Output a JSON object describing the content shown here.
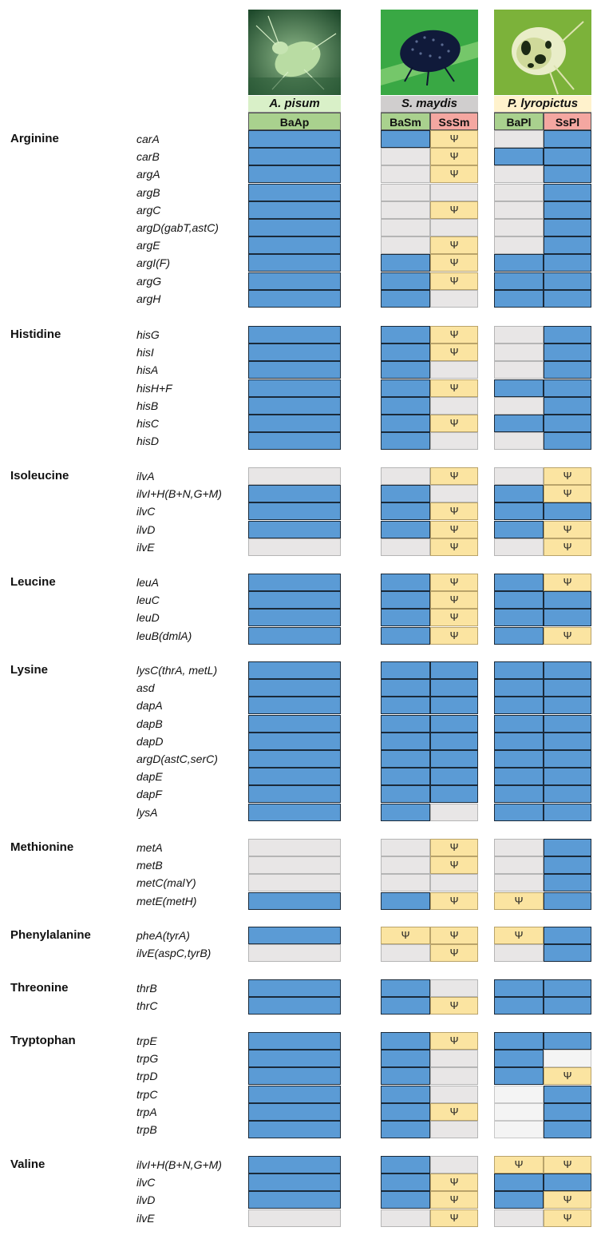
{
  "colors": {
    "present": "#5b9bd5",
    "absent": "#e8e6e6",
    "pseudogene": "#fbe4a1",
    "species_apisum_bg": "#d9f0c8",
    "species_smaydis_bg": "#d0cece",
    "species_plyropictus_bg": "#fff2cc",
    "buchnera_header_bg": "#a9d18e",
    "sulcia_header_bg": "#f4a7a1"
  },
  "legend_symbols": {
    "pseudogene": "Ψ"
  },
  "photos": [
    {
      "icon": "green-aphid-photo"
    },
    {
      "icon": "black-spiny-planthopper-photo"
    },
    {
      "icon": "psyllid-nymph-photo"
    }
  ],
  "species": [
    "A. pisum",
    "S. maydis",
    "P. lyropictus"
  ],
  "columns": [
    "BaAp",
    "BaSm",
    "SsSm",
    "BaPl",
    "SsPl"
  ],
  "groups": [
    {
      "name": "Arginine",
      "rows": [
        {
          "gene": "carA",
          "cells": [
            "P",
            "P",
            "Y",
            "A",
            "P"
          ]
        },
        {
          "gene": "carB",
          "cells": [
            "P",
            "A",
            "Y",
            "P",
            "P"
          ]
        },
        {
          "gene": "argA",
          "cells": [
            "P",
            "A",
            "Y",
            "A",
            "P"
          ]
        },
        {
          "gene": "argB",
          "cells": [
            "P",
            "A",
            "A",
            "A",
            "P"
          ]
        },
        {
          "gene": "argC",
          "cells": [
            "P",
            "A",
            "Y",
            "A",
            "P"
          ]
        },
        {
          "gene": "argD(gabT,astC)",
          "cells": [
            "P",
            "A",
            "A",
            "A",
            "P"
          ]
        },
        {
          "gene": "argE",
          "cells": [
            "P",
            "A",
            "Y",
            "A",
            "P"
          ]
        },
        {
          "gene": "argI(F)",
          "cells": [
            "P",
            "P",
            "Y",
            "P",
            "P"
          ]
        },
        {
          "gene": "argG",
          "cells": [
            "P",
            "P",
            "Y",
            "P",
            "P"
          ]
        },
        {
          "gene": "argH",
          "cells": [
            "P",
            "P",
            "A",
            "P",
            "P"
          ]
        }
      ]
    },
    {
      "name": "Histidine",
      "rows": [
        {
          "gene": "hisG",
          "cells": [
            "P",
            "P",
            "Y",
            "A",
            "P"
          ]
        },
        {
          "gene": "hisI",
          "cells": [
            "P",
            "P",
            "Y",
            "A",
            "P"
          ]
        },
        {
          "gene": "hisA",
          "cells": [
            "P",
            "P",
            "A",
            "A",
            "P"
          ]
        },
        {
          "gene": "hisH+F",
          "cells": [
            "P",
            "P",
            "Y",
            "P",
            "P"
          ]
        },
        {
          "gene": "hisB",
          "cells": [
            "P",
            "P",
            "A",
            "A",
            "P"
          ]
        },
        {
          "gene": "hisC",
          "cells": [
            "P",
            "P",
            "Y",
            "P",
            "P"
          ]
        },
        {
          "gene": "hisD",
          "cells": [
            "P",
            "P",
            "A",
            "A",
            "P"
          ]
        }
      ]
    },
    {
      "name": "Isoleucine",
      "rows": [
        {
          "gene": "ilvA",
          "cells": [
            "A",
            "A",
            "Y",
            "A",
            "Y"
          ]
        },
        {
          "gene": "ilvI+H(B+N,G+M)",
          "cells": [
            "P",
            "P",
            "A",
            "P",
            "Y"
          ]
        },
        {
          "gene": "ilvC",
          "cells": [
            "P",
            "P",
            "Y",
            "P",
            "P"
          ]
        },
        {
          "gene": "ilvD",
          "cells": [
            "P",
            "P",
            "Y",
            "P",
            "Y"
          ]
        },
        {
          "gene": "ilvE",
          "cells": [
            "A",
            "A",
            "Y",
            "A",
            "Y"
          ]
        }
      ]
    },
    {
      "name": "Leucine",
      "rows": [
        {
          "gene": "leuA",
          "cells": [
            "P",
            "P",
            "Y",
            "P",
            "Y"
          ]
        },
        {
          "gene": "leuC",
          "cells": [
            "P",
            "P",
            "Y",
            "P",
            "P"
          ]
        },
        {
          "gene": "leuD",
          "cells": [
            "P",
            "P",
            "Y",
            "P",
            "P"
          ]
        },
        {
          "gene": "leuB(dmlA)",
          "cells": [
            "P",
            "P",
            "Y",
            "P",
            "Y"
          ]
        }
      ]
    },
    {
      "name": "Lysine",
      "rows": [
        {
          "gene": "lysC(thrA, metL)",
          "cells": [
            "P",
            "P",
            "P",
            "P",
            "P"
          ]
        },
        {
          "gene": "asd",
          "cells": [
            "P",
            "P",
            "P",
            "P",
            "P"
          ]
        },
        {
          "gene": "dapA",
          "cells": [
            "P",
            "P",
            "P",
            "P",
            "P"
          ]
        },
        {
          "gene": "dapB",
          "cells": [
            "P",
            "P",
            "P",
            "P",
            "P"
          ]
        },
        {
          "gene": "dapD",
          "cells": [
            "P",
            "P",
            "P",
            "P",
            "P"
          ]
        },
        {
          "gene": "argD(astC,serC)",
          "cells": [
            "P",
            "P",
            "P",
            "P",
            "P"
          ]
        },
        {
          "gene": "dapE",
          "cells": [
            "P",
            "P",
            "P",
            "P",
            "P"
          ]
        },
        {
          "gene": "dapF",
          "cells": [
            "P",
            "P",
            "P",
            "P",
            "P"
          ]
        },
        {
          "gene": "lysA",
          "cells": [
            "P",
            "P",
            "A",
            "P",
            "P"
          ]
        }
      ]
    },
    {
      "name": "Methionine",
      "rows": [
        {
          "gene": "metA",
          "cells": [
            "A",
            "A",
            "Y",
            "A",
            "P"
          ]
        },
        {
          "gene": "metB",
          "cells": [
            "A",
            "A",
            "Y",
            "A",
            "P"
          ]
        },
        {
          "gene": "metC(malY)",
          "cells": [
            "A",
            "A",
            "A",
            "A",
            "P"
          ]
        },
        {
          "gene": "metE(metH)",
          "cells": [
            "P",
            "P",
            "Y",
            "Y",
            "P"
          ]
        }
      ]
    },
    {
      "name": "Phenylalanine",
      "rows": [
        {
          "gene": "pheA(tyrA)",
          "cells": [
            "P",
            "Y",
            "Y",
            "Y",
            "P"
          ]
        },
        {
          "gene": "ilvE(aspC,tyrB)",
          "cells": [
            "A",
            "A",
            "Y",
            "A",
            "P"
          ]
        }
      ]
    },
    {
      "name": "Threonine",
      "rows": [
        {
          "gene": "thrB",
          "cells": [
            "P",
            "P",
            "A",
            "P",
            "P"
          ]
        },
        {
          "gene": "thrC",
          "cells": [
            "P",
            "P",
            "Y",
            "P",
            "P"
          ]
        }
      ]
    },
    {
      "name": "Tryptophan",
      "rows": [
        {
          "gene": "trpE",
          "cells": [
            "P",
            "P",
            "Y",
            "P",
            "P"
          ]
        },
        {
          "gene": "trpG",
          "cells": [
            "P",
            "P",
            "A",
            "P",
            "W"
          ]
        },
        {
          "gene": "trpD",
          "cells": [
            "P",
            "P",
            "A",
            "P",
            "Y"
          ]
        },
        {
          "gene": "trpC",
          "cells": [
            "P",
            "P",
            "A",
            "W",
            "P"
          ]
        },
        {
          "gene": "trpA",
          "cells": [
            "P",
            "P",
            "Y",
            "W",
            "P"
          ]
        },
        {
          "gene": "trpB",
          "cells": [
            "P",
            "P",
            "A",
            "W",
            "P"
          ]
        }
      ]
    },
    {
      "name": "Valine",
      "rows": [
        {
          "gene": "ilvI+H(B+N,G+M)",
          "cells": [
            "P",
            "P",
            "A",
            "Y",
            "Y"
          ]
        },
        {
          "gene": "ilvC",
          "cells": [
            "P",
            "P",
            "Y",
            "P",
            "P"
          ]
        },
        {
          "gene": "ilvD",
          "cells": [
            "P",
            "P",
            "Y",
            "P",
            "Y"
          ]
        },
        {
          "gene": "ilvE",
          "cells": [
            "A",
            "A",
            "Y",
            "A",
            "Y"
          ]
        }
      ]
    }
  ]
}
